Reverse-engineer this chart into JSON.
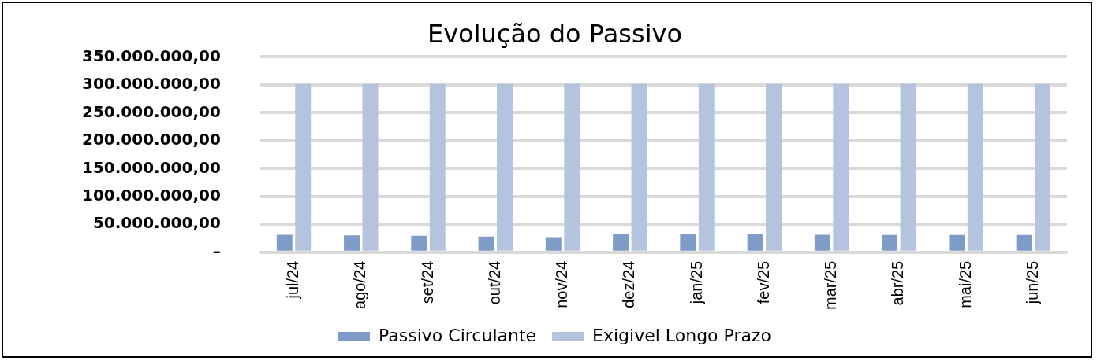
{
  "chart_data": {
    "type": "bar",
    "title": "Evolução do Passivo",
    "categories": [
      "jul/24",
      "ago/24",
      "set/24",
      "out/24",
      "nov/24",
      "dez/24",
      "jan/25",
      "fev/25",
      "mar/25",
      "abr/25",
      "mai/25",
      "jun/25"
    ],
    "series": [
      {
        "name": "Passivo Circulante",
        "color": "#7f9cc8",
        "values": [
          31300000,
          30400000,
          29500000,
          28100000,
          27100000,
          32300000,
          32300000,
          32300000,
          31300000,
          30900000,
          30900000,
          30900000
        ]
      },
      {
        "name": "Exigivel Longo Prazo",
        "color": "#b4c3de",
        "values": [
          301700000,
          301700000,
          301700000,
          301700000,
          301700000,
          301700000,
          301700000,
          301700000,
          301700000,
          301700000,
          301700000,
          301700000
        ]
      }
    ],
    "ylim": [
      0,
      350000000
    ],
    "yticks": [
      {
        "value": 0,
        "label": "–"
      },
      {
        "value": 50000000,
        "label": "50.000.000,00"
      },
      {
        "value": 100000000,
        "label": "100.000.000,00"
      },
      {
        "value": 150000000,
        "label": "150.000.000,00"
      },
      {
        "value": 200000000,
        "label": "200.000.000,00"
      },
      {
        "value": 250000000,
        "label": "250.000.000,00"
      },
      {
        "value": 300000000,
        "label": "300.000.000,00"
      },
      {
        "value": 350000000,
        "label": "350.000.000,00"
      }
    ],
    "grid": "y",
    "legend": "bottom"
  }
}
